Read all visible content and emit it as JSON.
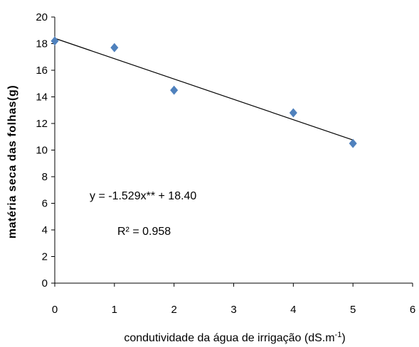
{
  "chart_data": {
    "type": "scatter",
    "title": "",
    "xlabel": "condutividade da água de irrigação (dS.m-1)",
    "xlabel_main": "condutividade da água de irrigação (dS.m",
    "xlabel_sup": "-1",
    "xlabel_close": ")",
    "ylabel": "matéria seca das folhas(g)",
    "xlim": [
      0,
      6
    ],
    "ylim": [
      0,
      20
    ],
    "xticks": [
      "0",
      "1",
      "2",
      "3",
      "4",
      "5",
      "6"
    ],
    "yticks": [
      "0",
      "2",
      "4",
      "6",
      "8",
      "10",
      "12",
      "14",
      "16",
      "18",
      "20"
    ],
    "grid": false,
    "legend": "none",
    "marker_color": "#4F81BD",
    "points": [
      {
        "x": 0,
        "y": 18.2
      },
      {
        "x": 1,
        "y": 17.7
      },
      {
        "x": 2,
        "y": 14.5
      },
      {
        "x": 4,
        "y": 12.8
      },
      {
        "x": 5,
        "y": 10.5
      }
    ],
    "trendline": {
      "slope": -1.529,
      "intercept": 18.4,
      "x_range": [
        0,
        5
      ],
      "color": "#000000"
    },
    "annotations": {
      "equation": "y = -1.529x** + 18.40",
      "r_squared": "R² = 0.958"
    }
  }
}
